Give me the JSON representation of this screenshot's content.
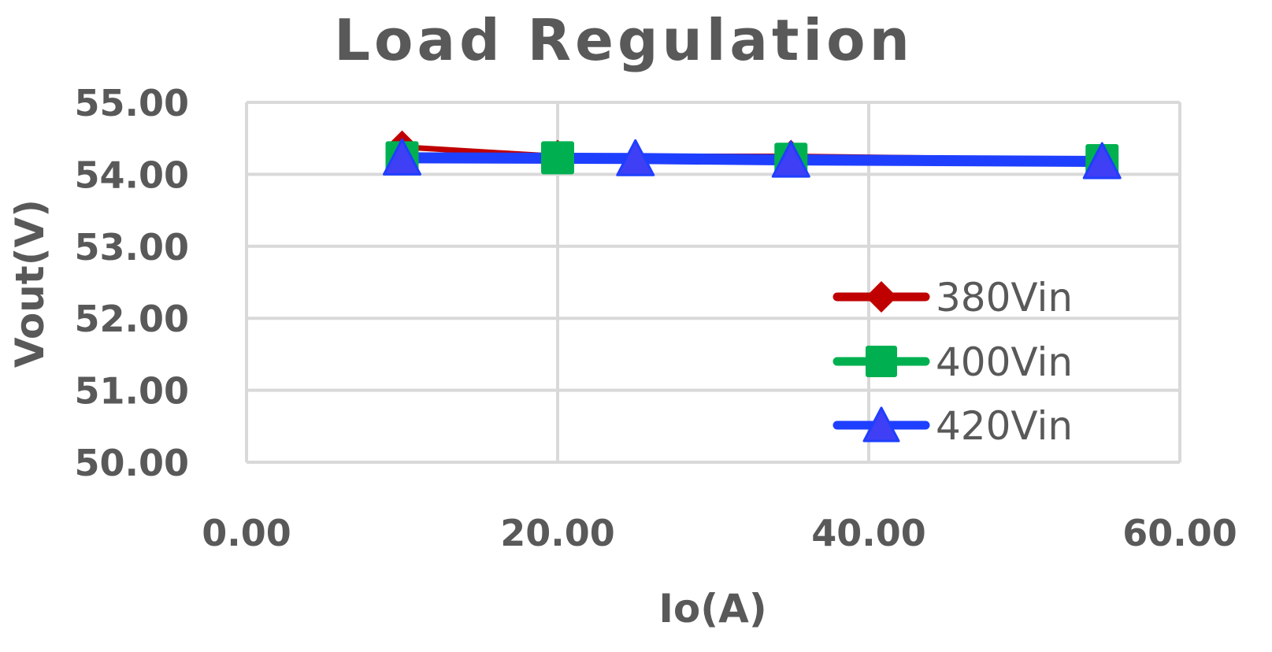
{
  "chart_data": {
    "type": "line",
    "title": "Load Regulation",
    "xlabel": "Io(A)",
    "ylabel": "Vout(V)",
    "xlim": [
      0,
      60
    ],
    "ylim": [
      50,
      55
    ],
    "x_ticks": [
      "0.00",
      "20.00",
      "40.00",
      "60.00"
    ],
    "y_ticks": [
      "55.00",
      "54.00",
      "53.00",
      "52.00",
      "51.00",
      "50.00"
    ],
    "grid": true,
    "legend_position": "lower-right inside plot",
    "series": [
      {
        "name": "380Vin",
        "color": "#c00000",
        "marker": "diamond",
        "x": [
          10,
          20,
          35,
          55
        ],
        "y": [
          54.38,
          54.25,
          54.25,
          54.2
        ]
      },
      {
        "name": "400Vin",
        "color": "#00b050",
        "marker": "square",
        "x": [
          10,
          20,
          35,
          55
        ],
        "y": [
          54.23,
          54.23,
          54.21,
          54.19
        ]
      },
      {
        "name": "420Vin",
        "color": "#1f3fff",
        "marker": "triangle",
        "x": [
          10,
          25,
          35,
          55
        ],
        "y": [
          54.23,
          54.22,
          54.2,
          54.18
        ]
      }
    ]
  }
}
